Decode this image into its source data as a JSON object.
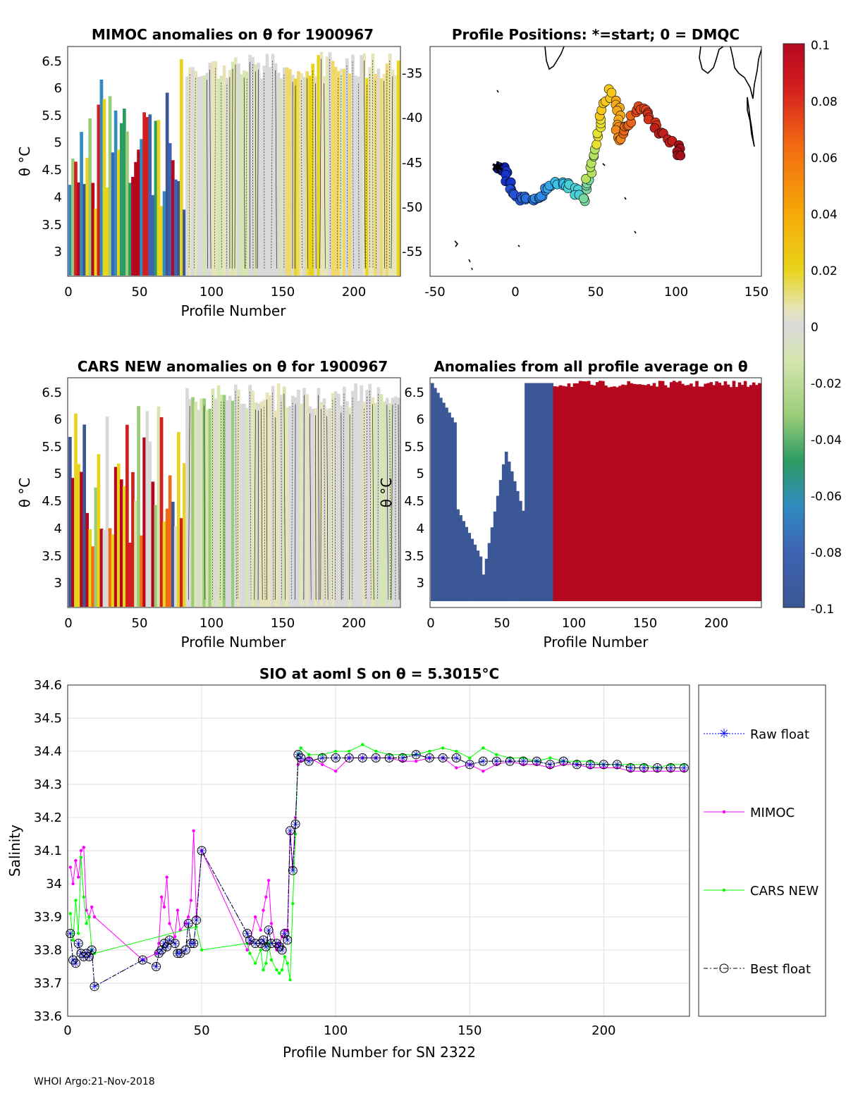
{
  "panels": {
    "mimoc": {
      "title": "MIMOC anomalies on θ  for 1900967",
      "xlabel": "Profile Number",
      "ylabel": "θ °C",
      "xticks": [
        "0",
        "50",
        "100",
        "150",
        "200"
      ],
      "yticks": [
        "6.5",
        "6",
        "5.5",
        "5",
        "4.5",
        "4",
        "3.5",
        "3"
      ]
    },
    "positions": {
      "title": "Profile Positions: *=start; 0 = DMQC",
      "xticks": [
        "-50",
        "0",
        "50",
        "100",
        "150"
      ],
      "yticks": [
        "-35",
        "-40",
        "-45",
        "-50",
        "-55"
      ]
    },
    "cars": {
      "title": "CARS NEW anomalies on θ for 1900967",
      "xlabel": "Profile Number",
      "ylabel": "θ °C",
      "xticks": [
        "0",
        "50",
        "100",
        "150",
        "200"
      ],
      "yticks": [
        "6.5",
        "6",
        "5.5",
        "5",
        "4.5",
        "4",
        "3.5",
        "3"
      ]
    },
    "allavg": {
      "title": "Anomalies from all profile average on θ",
      "xlabel": "Profile Number",
      "ylabel": "θ °C",
      "xticks": [
        "0",
        "50",
        "100",
        "150",
        "200"
      ],
      "yticks": [
        "6.5",
        "6",
        "5.5",
        "5",
        "4.5",
        "4",
        "3.5",
        "3"
      ]
    }
  },
  "colorbar": {
    "ticks": [
      "0.1",
      "0.08",
      "0.06",
      "0.04",
      "0.02",
      "0",
      "-0.02",
      "-0.04",
      "-0.06",
      "-0.08",
      "-0.1"
    ],
    "min": -0.1,
    "max": 0.1
  },
  "footer": "WHOI Argo:21-Nov-2018",
  "colors": {
    "raw": "#0000ff",
    "mimoc": "#ff00ff",
    "cars": "#00ff00",
    "best": "#000000",
    "grid": "#dfdfdf",
    "ocean_low": "#3b5795",
    "ocean_high": "#b5081f",
    "neutral": "#d9d9d9"
  },
  "chart_data": {
    "type": "line",
    "title": "SIO at aoml S on θ = 5.3015°C",
    "xlabel": "Profile Number for SN 2322",
    "ylabel": "Salinity",
    "xlim": [
      0,
      232
    ],
    "ylim": [
      33.6,
      34.6
    ],
    "xticks": [
      "0",
      "50",
      "100",
      "150",
      "200"
    ],
    "yticks": [
      "34.6",
      "34.5",
      "34.4",
      "34.3",
      "34.2",
      "34.1",
      "34",
      "33.9",
      "33.8",
      "33.7",
      "33.6"
    ],
    "legend_position": "outside-right",
    "series": [
      {
        "name": "Raw float",
        "style": "dotted-star",
        "x": [
          1,
          2,
          3,
          4,
          5,
          6,
          7,
          8,
          9,
          10,
          28,
          33,
          34,
          35,
          36,
          37,
          38,
          40,
          41,
          42,
          44,
          45,
          46,
          47,
          48,
          50,
          67,
          68,
          70,
          72,
          73,
          74,
          75,
          76,
          78,
          79,
          80,
          81,
          82,
          83,
          84,
          85,
          86,
          87,
          90,
          95,
          100,
          105,
          110,
          115,
          120,
          125,
          130,
          135,
          140,
          145,
          150,
          155,
          160,
          165,
          170,
          175,
          180,
          185,
          190,
          195,
          200,
          205,
          210,
          215,
          220,
          225,
          230
        ],
        "y": [
          33.85,
          33.77,
          33.76,
          33.82,
          33.79,
          33.78,
          33.79,
          33.78,
          33.8,
          33.69,
          33.77,
          33.75,
          33.79,
          33.8,
          33.82,
          33.81,
          33.83,
          33.82,
          33.79,
          33.79,
          33.8,
          33.88,
          33.82,
          33.82,
          33.89,
          34.1,
          33.85,
          33.83,
          33.82,
          33.82,
          33.83,
          33.81,
          33.86,
          33.82,
          33.82,
          33.81,
          33.8,
          33.85,
          33.83,
          34.16,
          34.04,
          34.18,
          34.39,
          34.38,
          34.37,
          34.38,
          34.38,
          34.38,
          34.38,
          34.38,
          34.38,
          34.38,
          34.39,
          34.38,
          34.38,
          34.38,
          34.36,
          34.37,
          34.37,
          34.37,
          34.37,
          34.37,
          34.36,
          34.37,
          34.36,
          34.36,
          34.36,
          34.36,
          34.35,
          34.35,
          34.35,
          34.35,
          34.35
        ]
      },
      {
        "name": "MIMOC",
        "style": "solid-dot",
        "x": [
          1,
          2,
          3,
          4,
          5,
          6,
          7,
          8,
          9,
          10,
          28,
          33,
          34,
          35,
          36,
          37,
          38,
          40,
          41,
          42,
          44,
          45,
          46,
          47,
          48,
          50,
          67,
          68,
          70,
          72,
          73,
          74,
          75,
          76,
          78,
          79,
          80,
          81,
          82,
          83,
          84,
          85,
          86,
          87,
          90,
          95,
          100,
          105,
          110,
          115,
          120,
          125,
          130,
          135,
          140,
          145,
          150,
          155,
          160,
          165,
          170,
          175,
          180,
          185,
          190,
          195,
          200,
          205,
          210,
          215,
          220,
          225,
          230
        ],
        "y": [
          34.05,
          34.0,
          34.07,
          34.02,
          34.1,
          34.11,
          33.92,
          33.9,
          33.93,
          33.9,
          33.77,
          33.79,
          33.82,
          33.96,
          33.93,
          34.02,
          33.88,
          33.84,
          33.92,
          33.86,
          33.88,
          33.9,
          33.95,
          34.16,
          33.9,
          34.1,
          33.8,
          33.82,
          33.9,
          33.86,
          33.92,
          33.96,
          34.01,
          33.88,
          33.8,
          33.82,
          33.84,
          33.86,
          33.86,
          34.15,
          34.05,
          34.2,
          34.36,
          34.37,
          34.38,
          34.36,
          34.34,
          34.38,
          34.38,
          34.38,
          34.38,
          34.37,
          34.37,
          34.38,
          34.38,
          34.35,
          34.36,
          34.34,
          34.36,
          34.37,
          34.36,
          34.36,
          34.35,
          34.36,
          34.36,
          34.35,
          34.35,
          34.35,
          34.34,
          34.34,
          34.34,
          34.34,
          34.34
        ]
      },
      {
        "name": "CARS NEW",
        "style": "solid-dot",
        "x": [
          1,
          2,
          3,
          4,
          5,
          6,
          7,
          8,
          9,
          10,
          48,
          50,
          67,
          68,
          70,
          72,
          73,
          74,
          75,
          76,
          78,
          79,
          80,
          81,
          82,
          83,
          84,
          85,
          86,
          87,
          90,
          95,
          100,
          105,
          110,
          115,
          120,
          125,
          130,
          135,
          140,
          145,
          150,
          155,
          160,
          165,
          170,
          175,
          180,
          185,
          190,
          195,
          200,
          205,
          210,
          215,
          220,
          225,
          230
        ],
        "y": [
          33.91,
          33.83,
          33.95,
          33.85,
          34.08,
          33.96,
          33.88,
          33.9,
          33.8,
          33.79,
          33.87,
          33.8,
          33.82,
          33.79,
          33.76,
          33.8,
          33.74,
          33.76,
          33.82,
          33.77,
          33.74,
          33.73,
          33.74,
          33.78,
          33.76,
          33.71,
          33.94,
          34.15,
          34.39,
          34.41,
          34.39,
          34.39,
          34.4,
          34.4,
          34.42,
          34.4,
          34.39,
          34.39,
          34.39,
          34.4,
          34.41,
          34.4,
          34.38,
          34.41,
          34.39,
          34.38,
          34.38,
          34.37,
          34.38,
          34.37,
          34.37,
          34.37,
          34.36,
          34.36,
          34.36,
          34.36,
          34.35,
          34.36,
          34.36
        ]
      },
      {
        "name": "Best float",
        "style": "dashdot-circle",
        "x": [
          1,
          2,
          3,
          4,
          5,
          6,
          7,
          8,
          9,
          10,
          28,
          33,
          34,
          35,
          36,
          37,
          38,
          40,
          41,
          42,
          44,
          45,
          46,
          47,
          48,
          50,
          67,
          68,
          70,
          72,
          73,
          74,
          75,
          76,
          78,
          79,
          80,
          81,
          82,
          83,
          84,
          85,
          86,
          87,
          90,
          95,
          100,
          105,
          110,
          115,
          120,
          125,
          130,
          135,
          140,
          145,
          150,
          155,
          160,
          165,
          170,
          175,
          180,
          185,
          190,
          195,
          200,
          205,
          210,
          215,
          220,
          225,
          230
        ],
        "y": [
          33.85,
          33.77,
          33.76,
          33.82,
          33.79,
          33.78,
          33.79,
          33.78,
          33.8,
          33.69,
          33.77,
          33.75,
          33.79,
          33.8,
          33.82,
          33.81,
          33.83,
          33.82,
          33.79,
          33.79,
          33.8,
          33.88,
          33.82,
          33.82,
          33.89,
          34.1,
          33.85,
          33.83,
          33.82,
          33.82,
          33.83,
          33.81,
          33.86,
          33.82,
          33.82,
          33.81,
          33.8,
          33.85,
          33.83,
          34.16,
          34.04,
          34.18,
          34.39,
          34.38,
          34.37,
          34.38,
          34.38,
          34.38,
          34.38,
          34.38,
          34.38,
          34.38,
          34.39,
          34.38,
          34.38,
          34.38,
          34.36,
          34.37,
          34.37,
          34.37,
          34.37,
          34.37,
          34.36,
          34.37,
          34.36,
          34.36,
          34.36,
          34.36,
          34.35,
          34.35,
          34.35,
          34.35,
          34.35
        ]
      }
    ]
  }
}
